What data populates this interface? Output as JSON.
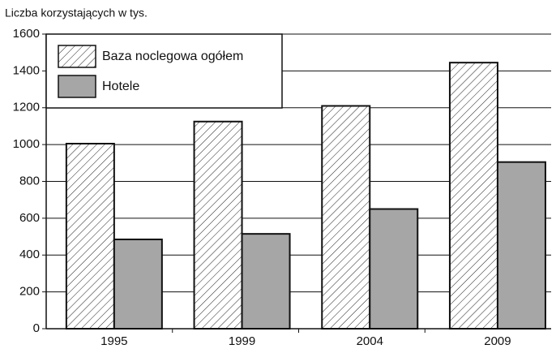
{
  "chart_data": {
    "type": "bar",
    "y_label": "Liczba korzystających w tys.",
    "categories": [
      "1995",
      "1999",
      "2004",
      "2009"
    ],
    "series": [
      {
        "name": "Baza noclegowa ogółem",
        "color": "#ffffff",
        "pattern": "hatch",
        "values": [
          1005,
          1125,
          1210,
          1445
        ]
      },
      {
        "name": "Hotele",
        "color": "#a6a6a6",
        "values": [
          485,
          515,
          650,
          905
        ]
      }
    ],
    "ylim": [
      0,
      1600
    ],
    "yticks": [
      0,
      200,
      400,
      600,
      800,
      1000,
      1200,
      1400,
      1600
    ],
    "grid": true,
    "legend": "upper left"
  }
}
